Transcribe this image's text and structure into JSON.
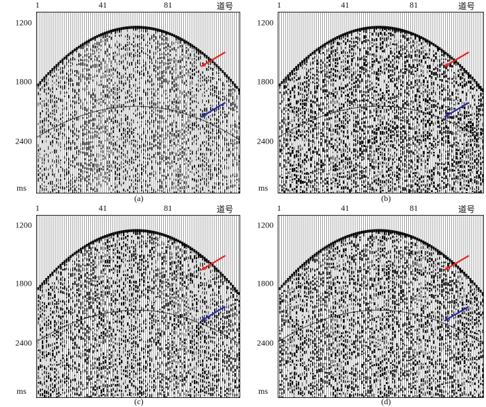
{
  "figure": {
    "panels": [
      {
        "id": "a",
        "caption": "(a)",
        "noise": 0.55,
        "x_ticks": [
          "1",
          "41",
          "81"
        ],
        "trace_label": "道号",
        "y_ticks": [
          "1200",
          "1800",
          "2400"
        ],
        "y_unit": "ms",
        "arrows": [
          {
            "color": "#e8231e"
          },
          {
            "color": "#2a2aa6"
          }
        ]
      },
      {
        "id": "b",
        "caption": "(b)",
        "noise": 0.95,
        "x_ticks": [
          "1",
          "41",
          "81"
        ],
        "trace_label": "道号",
        "y_ticks": [
          "1200",
          "1800",
          "2400"
        ],
        "y_unit": "ms",
        "arrows": [
          {
            "color": "#e8231e"
          },
          {
            "color": "#2a2aa6"
          }
        ]
      },
      {
        "id": "c",
        "caption": "(c)",
        "noise": 0.8,
        "x_ticks": [
          "1",
          "41",
          "81"
        ],
        "trace_label": "道号",
        "y_ticks": [
          "1200",
          "1800",
          "2400"
        ],
        "y_unit": "ms",
        "arrows": [
          {
            "color": "#e8231e"
          },
          {
            "color": "#2a2aa6"
          }
        ]
      },
      {
        "id": "d",
        "caption": "(d)",
        "noise": 0.85,
        "x_ticks": [
          "1",
          "41",
          "81"
        ],
        "trace_label": "道号",
        "y_ticks": [
          "1200",
          "1800",
          "2400"
        ],
        "y_unit": "ms",
        "arrows": [
          {
            "color": "#e8231e"
          },
          {
            "color": "#2a2aa6"
          }
        ]
      }
    ]
  }
}
